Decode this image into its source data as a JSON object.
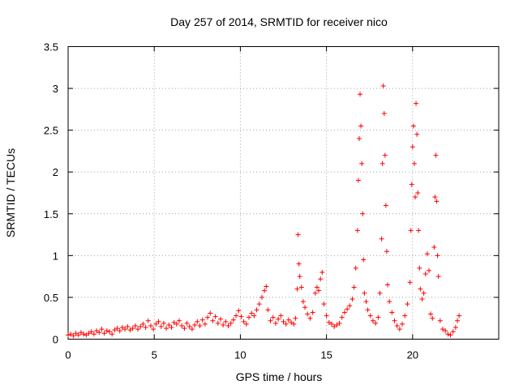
{
  "chart_data": {
    "type": "scatter",
    "title": "Day 257 of 2014, SRMTID for receiver nico",
    "xlabel": "GPS time / hours",
    "ylabel": "SRMTID / TECUs",
    "xlim": [
      0,
      25
    ],
    "ylim": [
      0,
      3.5
    ],
    "grid": true,
    "marker": "plus",
    "color": "#ff0000",
    "x_ticks": [
      0,
      5,
      10,
      15,
      20
    ],
    "x_tick_labels": [
      "0",
      "5",
      "10",
      "15",
      "20"
    ],
    "y_ticks": [
      0,
      0.5,
      1,
      1.5,
      2,
      2.5,
      3,
      3.5
    ],
    "y_tick_labels": [
      "0",
      "0.5",
      "1",
      "1.5",
      "2",
      "2.5",
      "3",
      "3.5"
    ],
    "series": [
      {
        "name": "SRMTID",
        "points": [
          [
            0.0,
            0.05
          ],
          [
            0.15,
            0.06
          ],
          [
            0.3,
            0.04
          ],
          [
            0.45,
            0.07
          ],
          [
            0.6,
            0.05
          ],
          [
            0.75,
            0.08
          ],
          [
            0.9,
            0.06
          ],
          [
            1.05,
            0.05
          ],
          [
            1.2,
            0.07
          ],
          [
            1.35,
            0.09
          ],
          [
            1.5,
            0.06
          ],
          [
            1.65,
            0.1
          ],
          [
            1.8,
            0.08
          ],
          [
            1.95,
            0.12
          ],
          [
            2.1,
            0.07
          ],
          [
            2.25,
            0.1
          ],
          [
            2.4,
            0.09
          ],
          [
            2.55,
            0.06
          ],
          [
            2.7,
            0.11
          ],
          [
            2.85,
            0.13
          ],
          [
            3.0,
            0.1
          ],
          [
            3.15,
            0.14
          ],
          [
            3.3,
            0.12
          ],
          [
            3.45,
            0.15
          ],
          [
            3.6,
            0.11
          ],
          [
            3.75,
            0.13
          ],
          [
            3.9,
            0.16
          ],
          [
            4.05,
            0.12
          ],
          [
            4.2,
            0.15
          ],
          [
            4.35,
            0.18
          ],
          [
            4.5,
            0.14
          ],
          [
            4.65,
            0.22
          ],
          [
            4.8,
            0.16
          ],
          [
            4.95,
            0.12
          ],
          [
            5.1,
            0.18
          ],
          [
            5.25,
            0.21
          ],
          [
            5.4,
            0.15
          ],
          [
            5.55,
            0.19
          ],
          [
            5.7,
            0.13
          ],
          [
            5.85,
            0.17
          ],
          [
            6.0,
            0.14
          ],
          [
            6.15,
            0.2
          ],
          [
            6.3,
            0.18
          ],
          [
            6.45,
            0.22
          ],
          [
            6.6,
            0.16
          ],
          [
            6.75,
            0.13
          ],
          [
            6.9,
            0.19
          ],
          [
            7.05,
            0.15
          ],
          [
            7.2,
            0.12
          ],
          [
            7.35,
            0.17
          ],
          [
            7.5,
            0.21
          ],
          [
            7.65,
            0.16
          ],
          [
            7.8,
            0.23
          ],
          [
            7.95,
            0.18
          ],
          [
            8.1,
            0.26
          ],
          [
            8.25,
            0.31
          ],
          [
            8.4,
            0.22
          ],
          [
            8.55,
            0.27
          ],
          [
            8.7,
            0.19
          ],
          [
            8.85,
            0.24
          ],
          [
            9.0,
            0.17
          ],
          [
            9.15,
            0.21
          ],
          [
            9.3,
            0.16
          ],
          [
            9.45,
            0.19
          ],
          [
            9.6,
            0.23
          ],
          [
            9.75,
            0.28
          ],
          [
            9.9,
            0.34
          ],
          [
            10.05,
            0.27
          ],
          [
            10.2,
            0.21
          ],
          [
            10.35,
            0.18
          ],
          [
            10.5,
            0.26
          ],
          [
            10.65,
            0.31
          ],
          [
            10.8,
            0.28
          ],
          [
            10.95,
            0.35
          ],
          [
            11.1,
            0.42
          ],
          [
            11.25,
            0.5
          ],
          [
            11.4,
            0.58
          ],
          [
            11.5,
            0.63
          ],
          [
            11.6,
            0.35
          ],
          [
            11.75,
            0.22
          ],
          [
            11.9,
            0.26
          ],
          [
            12.05,
            0.19
          ],
          [
            12.2,
            0.24
          ],
          [
            12.35,
            0.28
          ],
          [
            12.5,
            0.21
          ],
          [
            12.65,
            0.18
          ],
          [
            12.8,
            0.23
          ],
          [
            12.95,
            0.2
          ],
          [
            13.1,
            0.18
          ],
          [
            13.2,
            0.25
          ],
          [
            13.3,
            0.6
          ],
          [
            13.35,
            1.25
          ],
          [
            13.4,
            0.9
          ],
          [
            13.45,
            0.75
          ],
          [
            13.55,
            0.62
          ],
          [
            13.65,
            0.45
          ],
          [
            13.75,
            0.38
          ],
          [
            13.9,
            0.3
          ],
          [
            14.05,
            0.25
          ],
          [
            14.2,
            0.32
          ],
          [
            14.35,
            0.55
          ],
          [
            14.45,
            0.62
          ],
          [
            14.55,
            0.58
          ],
          [
            14.65,
            0.72
          ],
          [
            14.75,
            0.8
          ],
          [
            14.85,
            0.42
          ],
          [
            15.0,
            0.28
          ],
          [
            15.15,
            0.2
          ],
          [
            15.3,
            0.18
          ],
          [
            15.45,
            0.15
          ],
          [
            15.6,
            0.17
          ],
          [
            15.75,
            0.19
          ],
          [
            15.9,
            0.26
          ],
          [
            16.05,
            0.32
          ],
          [
            16.2,
            0.36
          ],
          [
            16.35,
            0.4
          ],
          [
            16.5,
            0.48
          ],
          [
            16.6,
            0.62
          ],
          [
            16.7,
            0.85
          ],
          [
            16.8,
            1.3
          ],
          [
            16.85,
            1.9
          ],
          [
            16.9,
            2.4
          ],
          [
            16.95,
            2.93
          ],
          [
            17.0,
            2.55
          ],
          [
            17.05,
            2.1
          ],
          [
            17.1,
            1.5
          ],
          [
            17.15,
            0.95
          ],
          [
            17.2,
            0.55
          ],
          [
            17.3,
            0.45
          ],
          [
            17.4,
            0.35
          ],
          [
            17.55,
            0.28
          ],
          [
            17.7,
            0.22
          ],
          [
            17.85,
            0.19
          ],
          [
            18.0,
            0.26
          ],
          [
            18.1,
            0.55
          ],
          [
            18.2,
            1.2
          ],
          [
            18.25,
            2.1
          ],
          [
            18.3,
            3.03
          ],
          [
            18.35,
            2.7
          ],
          [
            18.4,
            2.2
          ],
          [
            18.45,
            1.6
          ],
          [
            18.5,
            1.05
          ],
          [
            18.55,
            0.65
          ],
          [
            18.65,
            0.45
          ],
          [
            18.8,
            0.32
          ],
          [
            18.95,
            0.22
          ],
          [
            19.1,
            0.16
          ],
          [
            19.25,
            0.12
          ],
          [
            19.4,
            0.18
          ],
          [
            19.55,
            0.28
          ],
          [
            19.7,
            0.42
          ],
          [
            19.85,
            0.68
          ],
          [
            19.9,
            1.3
          ],
          [
            19.95,
            1.85
          ],
          [
            20.0,
            2.3
          ],
          [
            20.05,
            2.55
          ],
          [
            20.1,
            2.1
          ],
          [
            20.15,
            1.7
          ],
          [
            20.2,
            2.82
          ],
          [
            20.25,
            2.45
          ],
          [
            20.3,
            1.75
          ],
          [
            20.35,
            1.3
          ],
          [
            20.4,
            0.85
          ],
          [
            20.45,
            0.6
          ],
          [
            20.55,
            0.48
          ],
          [
            20.65,
            0.55
          ],
          [
            20.75,
            0.78
          ],
          [
            20.85,
            1.02
          ],
          [
            20.95,
            0.82
          ],
          [
            21.05,
            0.3
          ],
          [
            21.15,
            0.25
          ],
          [
            21.25,
            1.1
          ],
          [
            21.3,
            1.7
          ],
          [
            21.35,
            2.2
          ],
          [
            21.4,
            1.65
          ],
          [
            21.45,
            1.0
          ],
          [
            21.5,
            0.75
          ],
          [
            21.6,
            0.22
          ],
          [
            21.75,
            0.12
          ],
          [
            21.9,
            0.1
          ],
          [
            22.05,
            0.06
          ],
          [
            22.2,
            0.05
          ],
          [
            22.35,
            0.09
          ],
          [
            22.5,
            0.14
          ],
          [
            22.6,
            0.22
          ],
          [
            22.7,
            0.28
          ]
        ]
      }
    ]
  }
}
